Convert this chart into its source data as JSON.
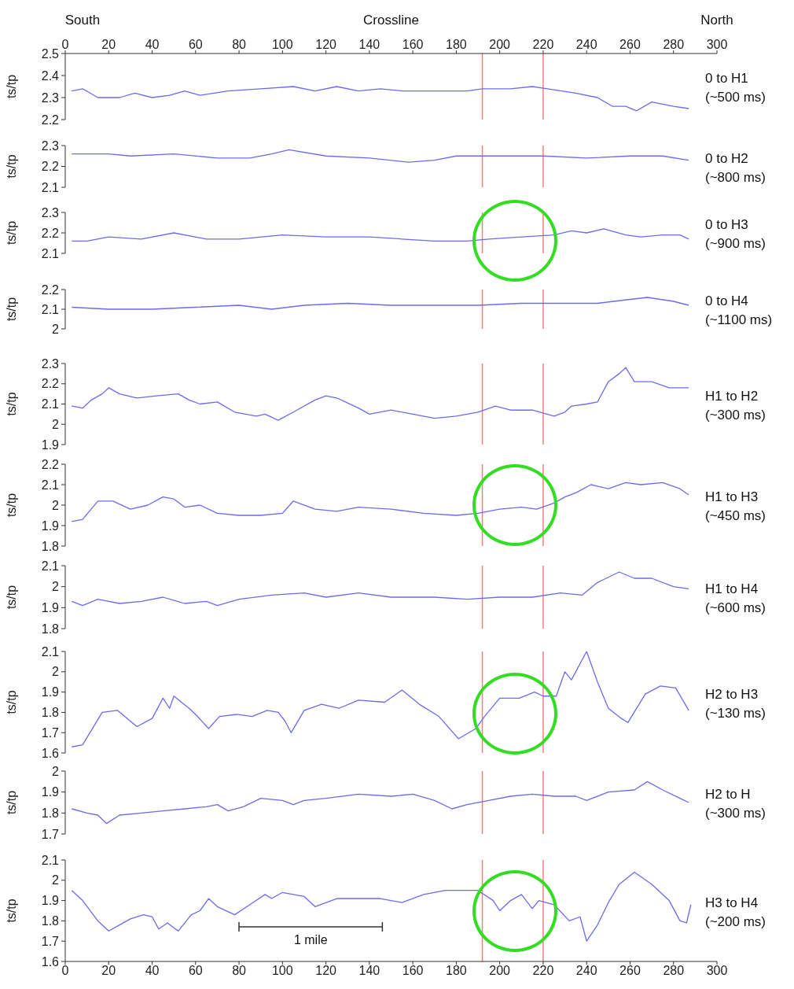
{
  "chart_data": [
    {
      "type": "line",
      "xlabel": "Crossline",
      "ylabel": "ts/tp",
      "annotations": [
        "0 to H1\n(~500 ms)",
        "South",
        "North"
      ],
      "xlim": [
        0,
        300
      ],
      "xticks": [
        0,
        20,
        40,
        60,
        80,
        100,
        120,
        140,
        160,
        180,
        200,
        220,
        240,
        260,
        280,
        300
      ],
      "ylim": [
        2.2,
        2.5
      ],
      "yticks": [
        2.2,
        2.3,
        2.4,
        2.5
      ],
      "ref_lines": [
        {
          "axis": "x",
          "value": 192,
          "color": "#f08080"
        },
        {
          "axis": "x",
          "value": 220,
          "color": "#f08080"
        }
      ],
      "series": [
        {
          "color": "#6b6bf0",
          "x": [
            3,
            8,
            15,
            25,
            32,
            40,
            48,
            55,
            62,
            75,
            90,
            105,
            115,
            125,
            135,
            145,
            155,
            170,
            185,
            192,
            205,
            215,
            222,
            235,
            245,
            252,
            258,
            263,
            270,
            280,
            287
          ],
          "values": [
            2.33,
            2.34,
            2.3,
            2.3,
            2.32,
            2.3,
            2.31,
            2.33,
            2.31,
            2.33,
            2.34,
            2.35,
            2.33,
            2.35,
            2.33,
            2.34,
            2.33,
            2.33,
            2.33,
            2.34,
            2.34,
            2.35,
            2.34,
            2.32,
            2.3,
            2.26,
            2.26,
            2.24,
            2.28,
            2.26,
            2.25
          ]
        }
      ]
    },
    {
      "type": "line",
      "ylabel": "ts/tp",
      "annotations": [
        "0 to H2\n(~800 ms)"
      ],
      "xlim": [
        0,
        300
      ],
      "tick_labels": "y",
      "ylim": [
        2.1,
        2.3
      ],
      "yticks": [
        2.1,
        2.2,
        2.3
      ],
      "ref_lines": [
        {
          "axis": "x",
          "value": 192,
          "color": "#f08080"
        },
        {
          "axis": "x",
          "value": 220,
          "color": "#f08080"
        }
      ],
      "series": [
        {
          "color": "#6b6bf0",
          "x": [
            3,
            20,
            30,
            50,
            70,
            85,
            95,
            103,
            120,
            140,
            158,
            170,
            180,
            200,
            220,
            240,
            260,
            275,
            287
          ],
          "values": [
            2.26,
            2.26,
            2.25,
            2.26,
            2.24,
            2.24,
            2.26,
            2.28,
            2.25,
            2.24,
            2.22,
            2.23,
            2.25,
            2.25,
            2.25,
            2.24,
            2.25,
            2.25,
            2.23
          ]
        }
      ]
    },
    {
      "type": "line",
      "ylabel": "ts/tp",
      "annotations": [
        "0 to H3\n(~900 ms)"
      ],
      "xlim": [
        0,
        300
      ],
      "tick_labels": "y",
      "ylim": [
        2.1,
        2.3
      ],
      "yticks": [
        2.1,
        2.2,
        2.3
      ],
      "ref_lines": [
        {
          "axis": "x",
          "value": 192,
          "color": "#f08080"
        },
        {
          "axis": "x",
          "value": 220,
          "color": "#f08080"
        }
      ],
      "series": [
        {
          "color": "#6b6bf0",
          "x": [
            3,
            10,
            20,
            35,
            50,
            65,
            80,
            100,
            120,
            140,
            155,
            170,
            185,
            195,
            210,
            225,
            233,
            240,
            248,
            258,
            265,
            275,
            283,
            287
          ],
          "values": [
            2.16,
            2.16,
            2.18,
            2.17,
            2.2,
            2.17,
            2.17,
            2.19,
            2.18,
            2.18,
            2.17,
            2.16,
            2.16,
            2.17,
            2.18,
            2.19,
            2.21,
            2.2,
            2.22,
            2.19,
            2.18,
            2.19,
            2.19,
            2.17
          ]
        }
      ]
    },
    {
      "type": "line",
      "ylabel": "ts/tp",
      "annotations": [
        "0 to H4\n(~1100 ms)"
      ],
      "xlim": [
        0,
        300
      ],
      "tick_labels": "y",
      "ylim": [
        2,
        2.2
      ],
      "yticks": [
        2,
        2.1,
        2.2
      ],
      "ref_lines": [
        {
          "axis": "x",
          "value": 192,
          "color": "#f08080"
        },
        {
          "axis": "x",
          "value": 220,
          "color": "#f08080"
        }
      ],
      "series": [
        {
          "color": "#6b6bf0",
          "x": [
            3,
            20,
            40,
            60,
            80,
            95,
            110,
            130,
            150,
            170,
            190,
            210,
            230,
            245,
            260,
            268,
            280,
            287
          ],
          "values": [
            2.11,
            2.1,
            2.1,
            2.11,
            2.12,
            2.1,
            2.12,
            2.13,
            2.12,
            2.12,
            2.12,
            2.13,
            2.13,
            2.13,
            2.15,
            2.16,
            2.14,
            2.12
          ]
        }
      ]
    },
    {
      "type": "line",
      "ylabel": "ts/tp",
      "annotations": [
        "H1 to H2\n(~300 ms)"
      ],
      "xlim": [
        0,
        300
      ],
      "tick_labels": "y",
      "ylim": [
        1.9,
        2.3
      ],
      "yticks": [
        1.9,
        2,
        2.1,
        2.2,
        2.3
      ],
      "ref_lines": [
        {
          "axis": "x",
          "value": 192,
          "color": "#f08080"
        },
        {
          "axis": "x",
          "value": 220,
          "color": "#f08080"
        }
      ],
      "series": [
        {
          "color": "#6b6bf0",
          "x": [
            3,
            8,
            12,
            17,
            20,
            25,
            33,
            42,
            52,
            57,
            62,
            70,
            78,
            88,
            92,
            98,
            105,
            115,
            120,
            125,
            135,
            140,
            150,
            160,
            170,
            180,
            190,
            198,
            205,
            215,
            225,
            230,
            233,
            240,
            245,
            250,
            255,
            258,
            262,
            270,
            278,
            287
          ],
          "values": [
            2.09,
            2.08,
            2.12,
            2.15,
            2.18,
            2.15,
            2.13,
            2.14,
            2.15,
            2.12,
            2.1,
            2.11,
            2.06,
            2.04,
            2.05,
            2.02,
            2.06,
            2.12,
            2.14,
            2.13,
            2.08,
            2.05,
            2.07,
            2.05,
            2.03,
            2.04,
            2.06,
            2.09,
            2.07,
            2.07,
            2.04,
            2.06,
            2.09,
            2.1,
            2.11,
            2.21,
            2.25,
            2.28,
            2.21,
            2.21,
            2.18,
            2.18
          ]
        }
      ]
    },
    {
      "type": "line",
      "ylabel": "ts/tp",
      "annotations": [
        "H1 to H3\n(~450 ms)"
      ],
      "xlim": [
        0,
        300
      ],
      "tick_labels": "y",
      "ylim": [
        1.8,
        2.2
      ],
      "yticks": [
        1.8,
        1.9,
        2,
        2.1,
        2.2
      ],
      "ref_lines": [
        {
          "axis": "x",
          "value": 192,
          "color": "#f08080"
        },
        {
          "axis": "x",
          "value": 220,
          "color": "#f08080"
        }
      ],
      "series": [
        {
          "color": "#6b6bf0",
          "x": [
            3,
            8,
            15,
            22,
            30,
            38,
            45,
            50,
            55,
            62,
            70,
            80,
            90,
            100,
            105,
            115,
            125,
            135,
            150,
            165,
            180,
            190,
            200,
            210,
            217,
            225,
            230,
            235,
            242,
            250,
            258,
            265,
            275,
            283,
            287
          ],
          "values": [
            1.92,
            1.93,
            2.02,
            2.02,
            1.98,
            2,
            2.04,
            2.03,
            1.99,
            2,
            1.96,
            1.95,
            1.95,
            1.96,
            2.02,
            1.98,
            1.97,
            1.99,
            1.98,
            1.96,
            1.95,
            1.96,
            1.98,
            1.99,
            1.98,
            2.01,
            2.04,
            2.06,
            2.1,
            2.08,
            2.11,
            2.1,
            2.11,
            2.08,
            2.05
          ]
        }
      ]
    },
    {
      "type": "line",
      "ylabel": "ts/tp",
      "annotations": [
        "H1 to H4\n(~600 ms)"
      ],
      "xlim": [
        0,
        300
      ],
      "tick_labels": "y",
      "ylim": [
        1.8,
        2.1
      ],
      "yticks": [
        1.8,
        1.9,
        2,
        2.1
      ],
      "ref_lines": [
        {
          "axis": "x",
          "value": 192,
          "color": "#f08080"
        },
        {
          "axis": "x",
          "value": 220,
          "color": "#f08080"
        }
      ],
      "series": [
        {
          "color": "#6b6bf0",
          "x": [
            3,
            8,
            15,
            25,
            35,
            45,
            55,
            65,
            70,
            80,
            95,
            110,
            120,
            135,
            150,
            170,
            185,
            200,
            215,
            228,
            238,
            245,
            255,
            262,
            270,
            280,
            287
          ],
          "values": [
            1.93,
            1.91,
            1.94,
            1.92,
            1.93,
            1.95,
            1.92,
            1.93,
            1.91,
            1.94,
            1.96,
            1.97,
            1.95,
            1.97,
            1.95,
            1.95,
            1.94,
            1.95,
            1.95,
            1.97,
            1.96,
            2.02,
            2.07,
            2.04,
            2.04,
            2,
            1.99
          ]
        }
      ]
    },
    {
      "type": "line",
      "ylabel": "ts/tp",
      "annotations": [
        "H2 to H3\n(~130 ms)"
      ],
      "xlim": [
        0,
        300
      ],
      "tick_labels": "y",
      "ylim": [
        1.6,
        2.1
      ],
      "yticks": [
        1.6,
        1.7,
        1.8,
        1.9,
        2,
        2.1
      ],
      "ref_lines": [
        {
          "axis": "x",
          "value": 192,
          "color": "#f08080"
        },
        {
          "axis": "x",
          "value": 220,
          "color": "#f08080"
        }
      ],
      "series": [
        {
          "color": "#6b6bf0",
          "x": [
            3,
            8,
            17,
            24,
            33,
            40,
            45,
            48,
            50,
            57,
            60,
            66,
            71,
            79,
            86,
            93,
            98,
            101,
            104,
            110,
            118,
            126,
            135,
            147,
            155,
            163,
            172,
            181,
            189,
            193,
            200,
            209,
            216,
            220,
            226,
            230,
            233,
            240,
            245,
            250,
            256,
            259,
            267,
            274,
            281,
            287
          ],
          "values": [
            1.63,
            1.64,
            1.8,
            1.81,
            1.73,
            1.77,
            1.87,
            1.82,
            1.88,
            1.82,
            1.79,
            1.72,
            1.78,
            1.79,
            1.78,
            1.81,
            1.8,
            1.76,
            1.7,
            1.81,
            1.84,
            1.82,
            1.86,
            1.85,
            1.91,
            1.84,
            1.78,
            1.67,
            1.72,
            1.78,
            1.87,
            1.87,
            1.9,
            1.88,
            1.88,
            2,
            1.96,
            2.1,
            1.95,
            1.82,
            1.77,
            1.75,
            1.89,
            1.93,
            1.92,
            1.81
          ]
        }
      ]
    },
    {
      "type": "line",
      "ylabel": "ts/tp",
      "annotations": [
        "H2 to H\n(~300 ms)"
      ],
      "xlim": [
        0,
        300
      ],
      "tick_labels": "y",
      "ylim": [
        1.7,
        2
      ],
      "yticks": [
        1.7,
        1.8,
        1.9,
        2
      ],
      "ref_lines": [
        {
          "axis": "x",
          "value": 192,
          "color": "#f08080"
        },
        {
          "axis": "x",
          "value": 220,
          "color": "#f08080"
        }
      ],
      "series": [
        {
          "color": "#6b6bf0",
          "x": [
            3,
            10,
            15,
            19,
            25,
            35,
            45,
            55,
            65,
            70,
            75,
            82,
            90,
            100,
            105,
            110,
            120,
            135,
            150,
            160,
            170,
            178,
            185,
            195,
            205,
            215,
            225,
            235,
            240,
            250,
            262,
            268,
            275,
            283,
            287
          ],
          "values": [
            1.82,
            1.8,
            1.79,
            1.75,
            1.79,
            1.8,
            1.81,
            1.82,
            1.83,
            1.84,
            1.81,
            1.83,
            1.87,
            1.86,
            1.84,
            1.86,
            1.87,
            1.89,
            1.88,
            1.89,
            1.86,
            1.82,
            1.84,
            1.86,
            1.88,
            1.89,
            1.88,
            1.88,
            1.86,
            1.9,
            1.91,
            1.95,
            1.91,
            1.87,
            1.85
          ]
        }
      ]
    },
    {
      "type": "line",
      "ylabel": "ts/tp",
      "annotations": [
        "H3 to H4\n(~200 ms)",
        "1 mile"
      ],
      "xlim": [
        0,
        300
      ],
      "xticks": [
        0,
        20,
        40,
        60,
        80,
        100,
        120,
        140,
        160,
        180,
        200,
        220,
        240,
        260,
        280,
        300
      ],
      "ylim": [
        1.6,
        2.1
      ],
      "yticks": [
        1.6,
        1.7,
        1.8,
        1.9,
        2,
        2.1
      ],
      "ref_lines": [
        {
          "axis": "x",
          "value": 192,
          "color": "#f08080"
        },
        {
          "axis": "x",
          "value": 220,
          "color": "#f08080"
        }
      ],
      "series": [
        {
          "color": "#6b6bf0",
          "x": [
            3,
            8,
            15,
            20,
            25,
            30,
            36,
            40,
            43,
            47,
            52,
            58,
            62,
            66,
            70,
            78,
            85,
            92,
            95,
            100,
            110,
            115,
            125,
            135,
            145,
            155,
            165,
            175,
            185,
            190,
            197,
            200,
            205,
            210,
            215,
            218,
            225,
            232,
            237,
            240,
            245,
            250,
            255,
            262,
            270,
            278,
            283,
            286,
            288
          ],
          "values": [
            1.95,
            1.9,
            1.8,
            1.75,
            1.78,
            1.81,
            1.83,
            1.82,
            1.76,
            1.79,
            1.75,
            1.83,
            1.85,
            1.91,
            1.87,
            1.83,
            1.88,
            1.93,
            1.91,
            1.94,
            1.92,
            1.87,
            1.91,
            1.91,
            1.91,
            1.89,
            1.93,
            1.95,
            1.95,
            1.95,
            1.9,
            1.85,
            1.9,
            1.93,
            1.86,
            1.9,
            1.88,
            1.8,
            1.82,
            1.7,
            1.78,
            1.89,
            1.98,
            2.04,
            1.98,
            1.9,
            1.8,
            1.79,
            1.88
          ]
        }
      ]
    }
  ]
}
